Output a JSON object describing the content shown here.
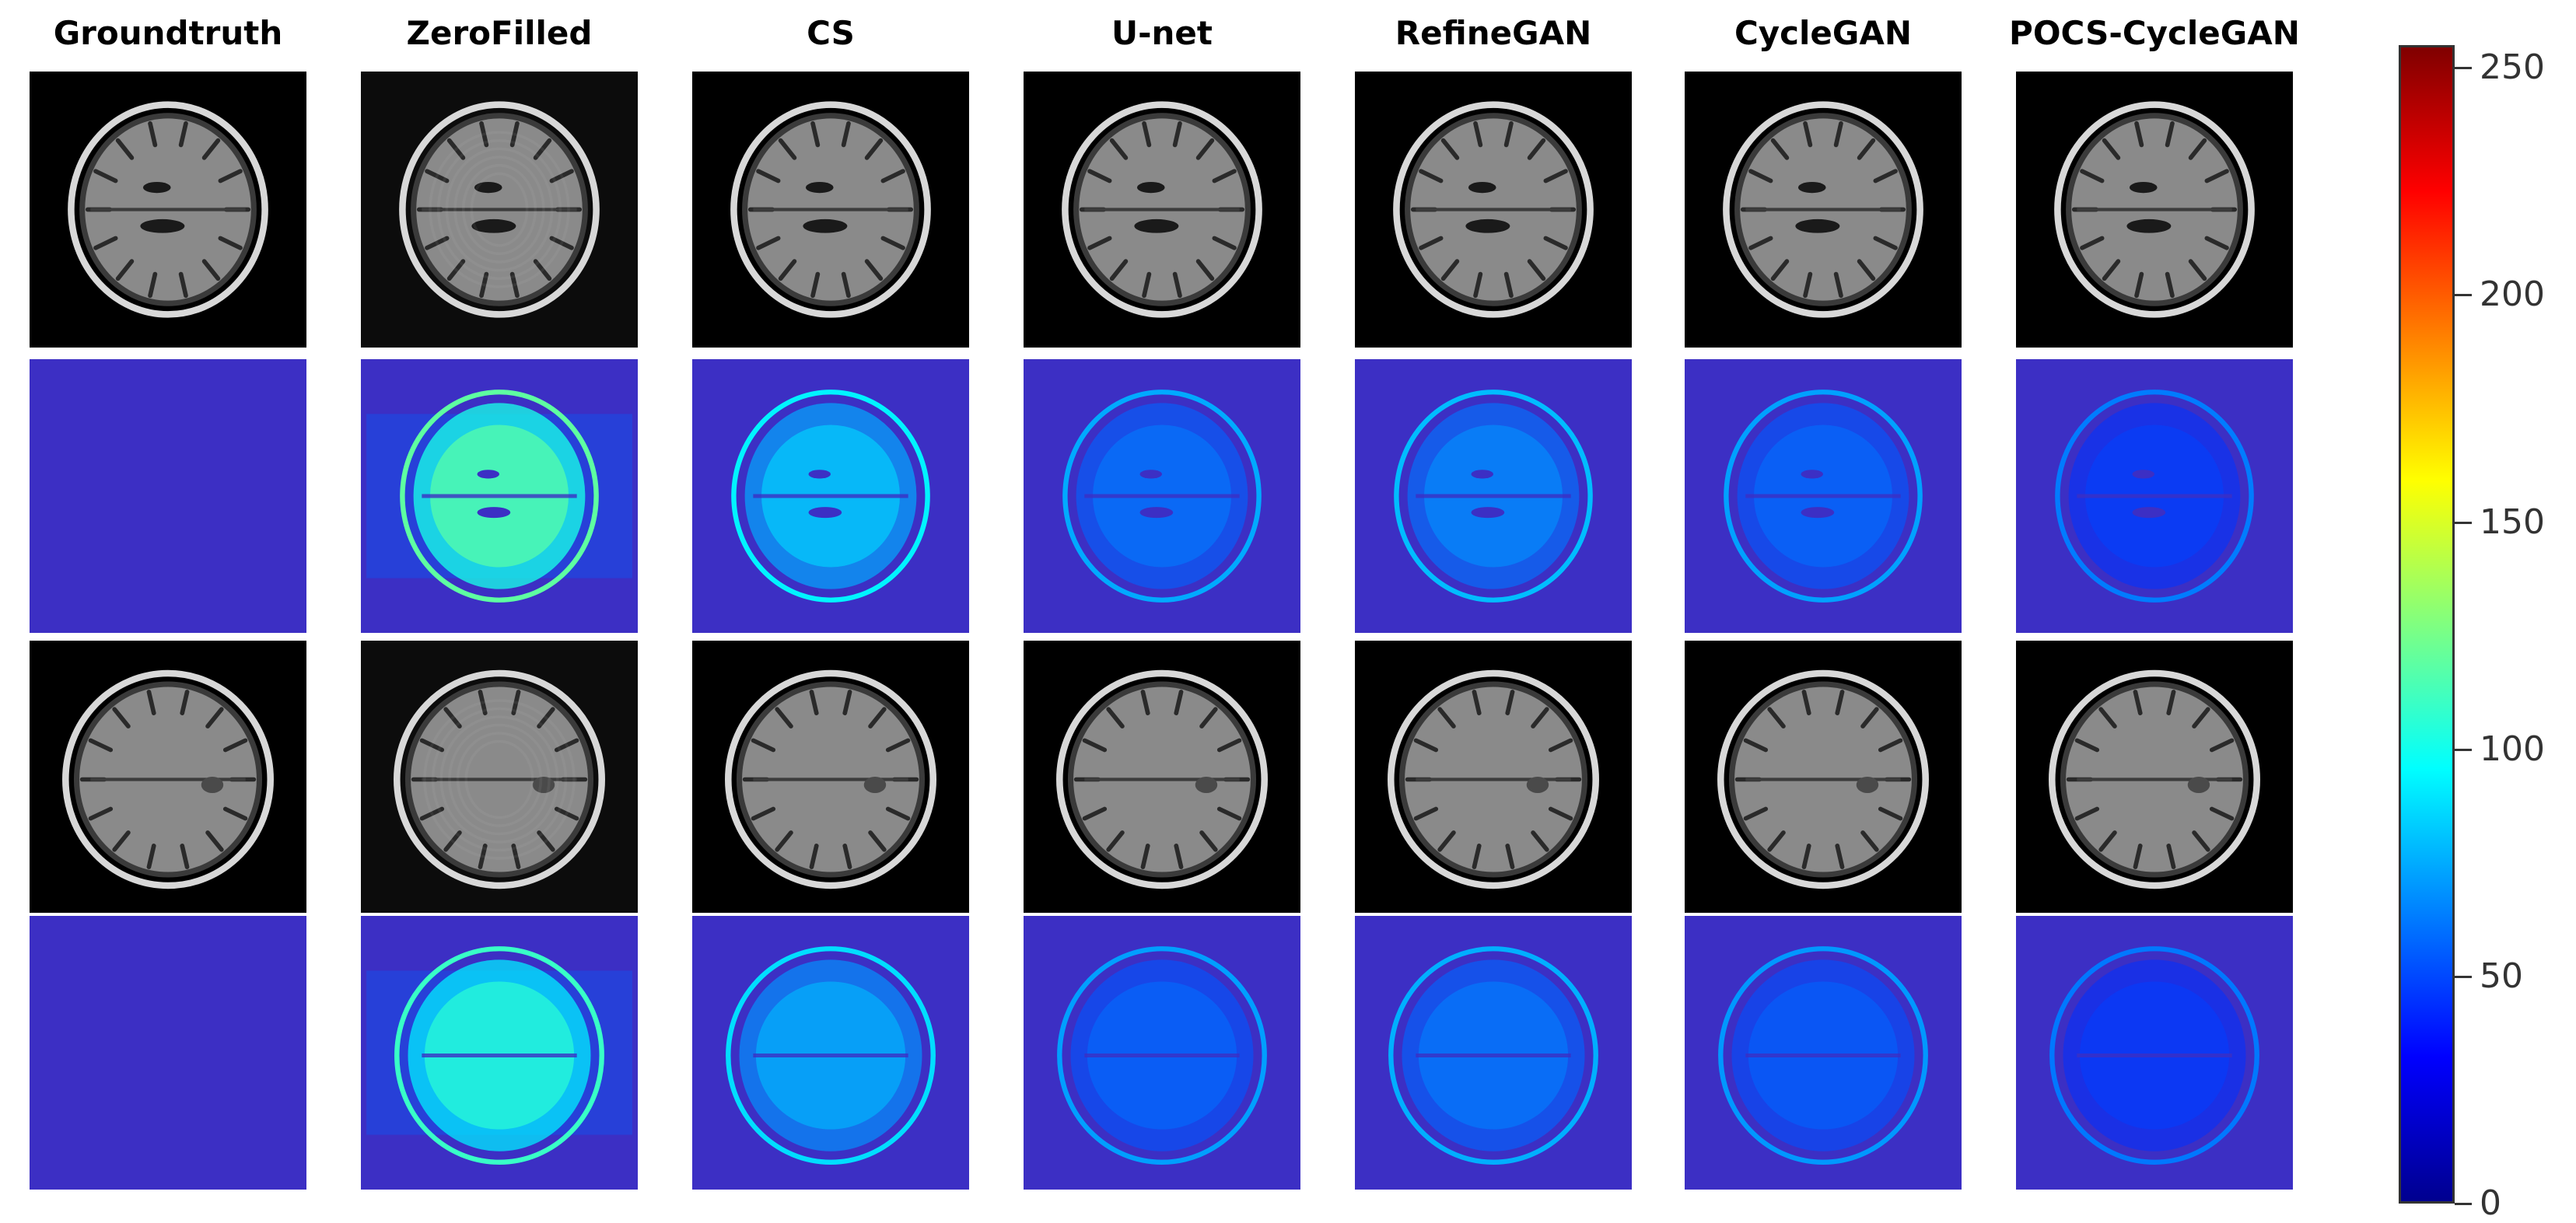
{
  "columns": [
    "Groundtruth",
    "ZeroFilled",
    "CS",
    "U-net",
    "RefineGAN",
    "CycleGAN",
    "POCS-CycleGAN"
  ],
  "rows": [
    {
      "kind": "mri",
      "slice": "A"
    },
    {
      "kind": "error",
      "slice": "A"
    },
    {
      "kind": "mri",
      "slice": "B"
    },
    {
      "kind": "error",
      "slice": "B"
    }
  ],
  "error_level": [
    0.0,
    0.55,
    0.32,
    0.16,
    0.2,
    0.14,
    0.06
  ],
  "colorbar": {
    "min": 0,
    "max": 255,
    "ticks": [
      "0",
      "50",
      "100",
      "150",
      "200",
      "250"
    ],
    "colormap": "jet"
  },
  "colors": {
    "error_background": "#3c2fc4",
    "mri_background": "#000000"
  }
}
